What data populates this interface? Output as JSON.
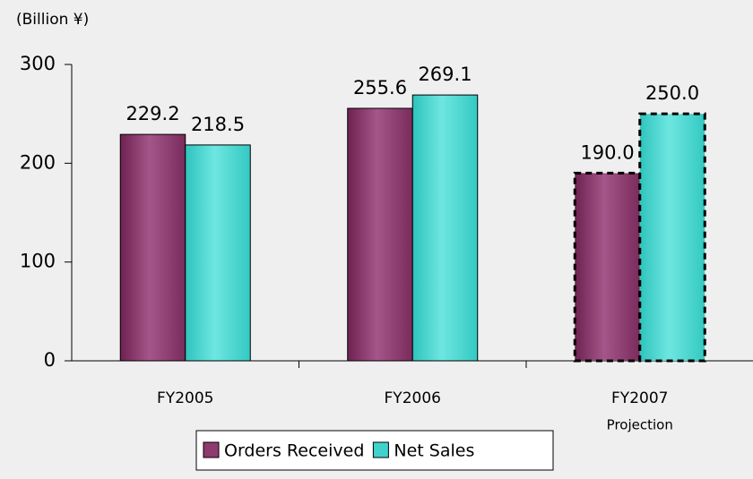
{
  "chart_data": {
    "type": "bar",
    "y_label": "(Billion ¥)",
    "categories": [
      "FY2005",
      "FY2006",
      "FY2007"
    ],
    "annotation": {
      "category": "FY2007",
      "text": "Projection"
    },
    "dashed_categories": [
      "FY2007"
    ],
    "series": [
      {
        "name": "Orders Received",
        "color": "#8e3b6e",
        "values": [
          229.2,
          255.6,
          190
        ],
        "value_labels": [
          "229.2",
          "255.6",
          "190.0"
        ]
      },
      {
        "name": "Net Sales",
        "color": "#3fd3cc",
        "values": [
          218.5,
          269.1,
          250
        ],
        "value_labels": [
          "218.5",
          "269.1",
          "250.0"
        ]
      }
    ],
    "ylim": [
      0,
      300
    ],
    "yticks": [
      0,
      100,
      200,
      300
    ],
    "legend": "bottom"
  }
}
